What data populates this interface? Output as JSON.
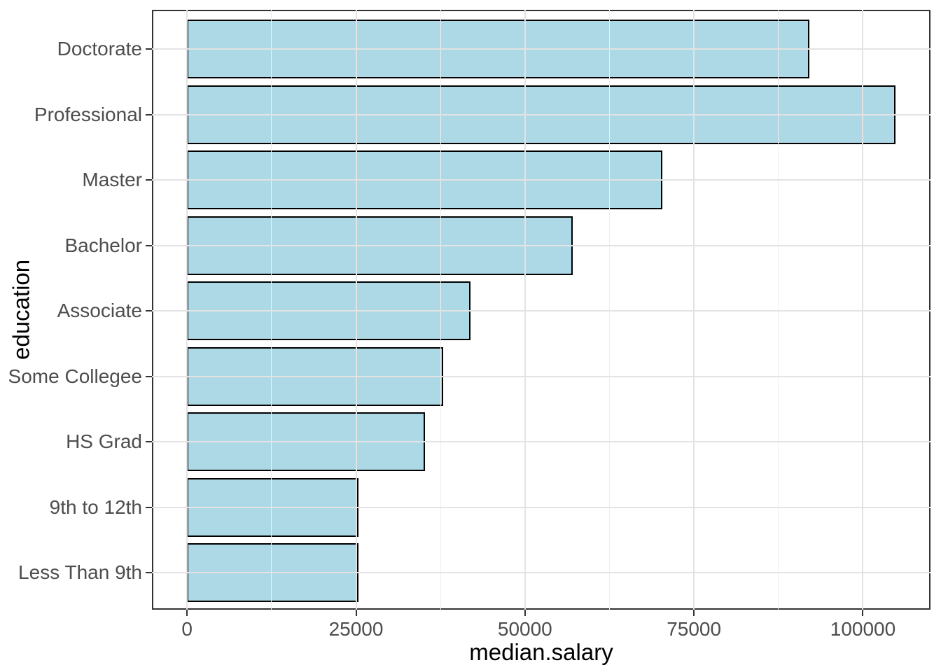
{
  "chart_data": {
    "type": "bar",
    "orientation": "horizontal",
    "title": "",
    "xlabel": "median.salary",
    "ylabel": "education",
    "categories": [
      "Doctorate",
      "Professional",
      "Master",
      "Bachelor",
      "Associate",
      "Some Collegee",
      "HS Grad",
      "9th to 12th",
      "Less Than 9th"
    ],
    "values": [
      92100,
      104800,
      70300,
      57100,
      41900,
      37900,
      35200,
      25400,
      25400
    ],
    "x_ticks": [
      0,
      25000,
      50000,
      75000,
      100000
    ],
    "x_tick_labels": [
      "0",
      "25000",
      "50000",
      "75000",
      "100000"
    ],
    "x_minor_ticks": [
      12500,
      37500,
      62500,
      87500
    ],
    "xlim": [
      -5200,
      110000
    ],
    "grid": "on",
    "legend": "none",
    "bar_width_fraction": 0.9
  },
  "colors": {
    "bar_fill": "#ADD8E6",
    "bar_stroke": "#000000",
    "panel_border": "#333333",
    "grid_major": "#E3E3E3",
    "grid_minor": "#EEEEEE",
    "tick_text": "#4D4D4D",
    "axis_title_text": "#000000",
    "background": "#FFFFFF"
  }
}
